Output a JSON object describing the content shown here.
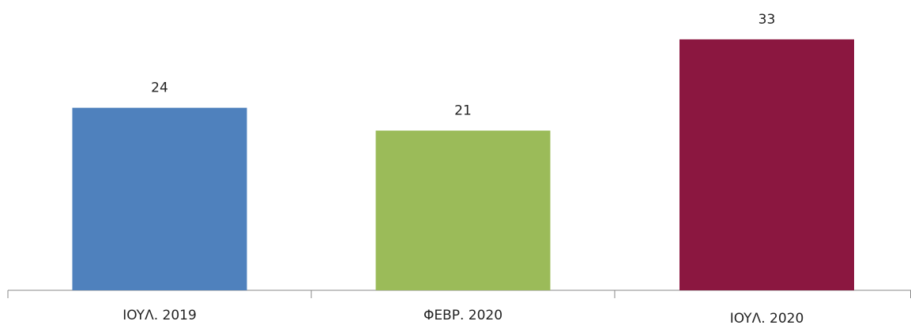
{
  "chart_data": {
    "type": "bar",
    "categories": [
      "IOYΛ. 2019",
      "ΦΕΒΡ. 2020",
      "IOYΛ. 2020"
    ],
    "values": [
      24,
      21,
      33
    ],
    "colors": [
      "#4f81bd",
      "#9bbb59",
      "#8b1740"
    ]
  }
}
